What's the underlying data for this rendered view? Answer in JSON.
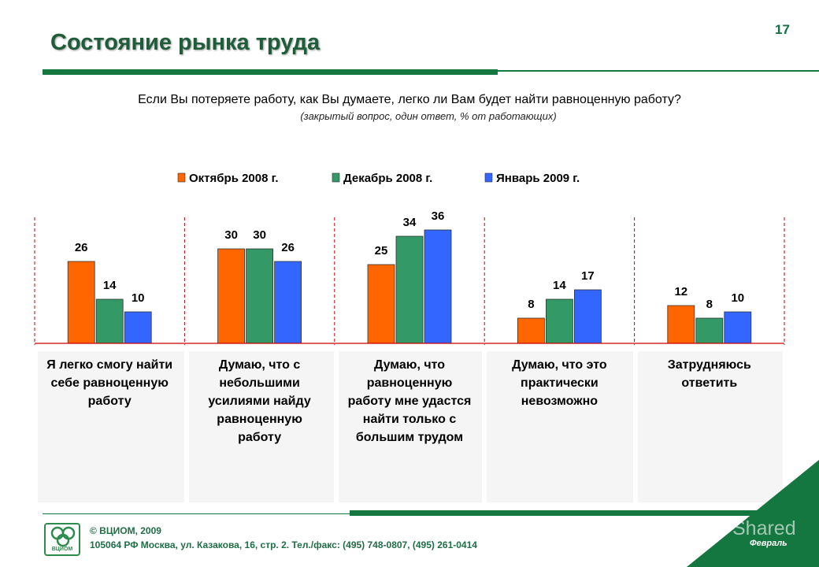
{
  "header": {
    "title": "Состояние рынка труда",
    "page_number": "17"
  },
  "question": "Если Вы потеряете работу, как Вы думаете, легко ли Вам будет найти равноценную работу?",
  "subnote": "(закрытый вопрос, один ответ, % от работающих)",
  "footer": {
    "copyright": "© ВЦИОМ, 2009",
    "address": "105064 РФ Москва, ул. Казакова, 16, стр. 2. Тел./факс: (495) 748-0807, (495) 261-0414",
    "logo_text": "ВЦИОМ",
    "month": "Февраль",
    "watermark": "Shared"
  },
  "colors": {
    "october": "#ff6600",
    "december": "#339966",
    "january": "#3366ff",
    "brand_green": "#13773f",
    "separator": "#cc0000"
  },
  "chart_data": {
    "type": "bar",
    "title": "",
    "xlabel": "",
    "ylabel": "",
    "ylim": [
      0,
      40
    ],
    "grid": false,
    "legend_position": "top-center",
    "categories": [
      [
        "Я легко смогу найти",
        "себе равноценную",
        "работу"
      ],
      [
        "Думаю, что с",
        "небольшими",
        "усилиями найду",
        "равноценную",
        "работу"
      ],
      [
        "Думаю, что",
        "равноценную",
        "работу мне удастся",
        "найти только с",
        "большим трудом"
      ],
      [
        "Думаю, что это",
        "практически",
        "невозможно"
      ],
      [
        "Затрудняюсь",
        "ответить"
      ]
    ],
    "series": [
      {
        "name": "Октябрь 2008 г.",
        "color": "#ff6600",
        "values": [
          26,
          30,
          25,
          8,
          12
        ]
      },
      {
        "name": "Декабрь 2008 г.",
        "color": "#339966",
        "values": [
          14,
          30,
          34,
          14,
          8
        ]
      },
      {
        "name": "Январь 2009 г.",
        "color": "#3366ff",
        "values": [
          10,
          26,
          36,
          17,
          10
        ]
      }
    ]
  }
}
